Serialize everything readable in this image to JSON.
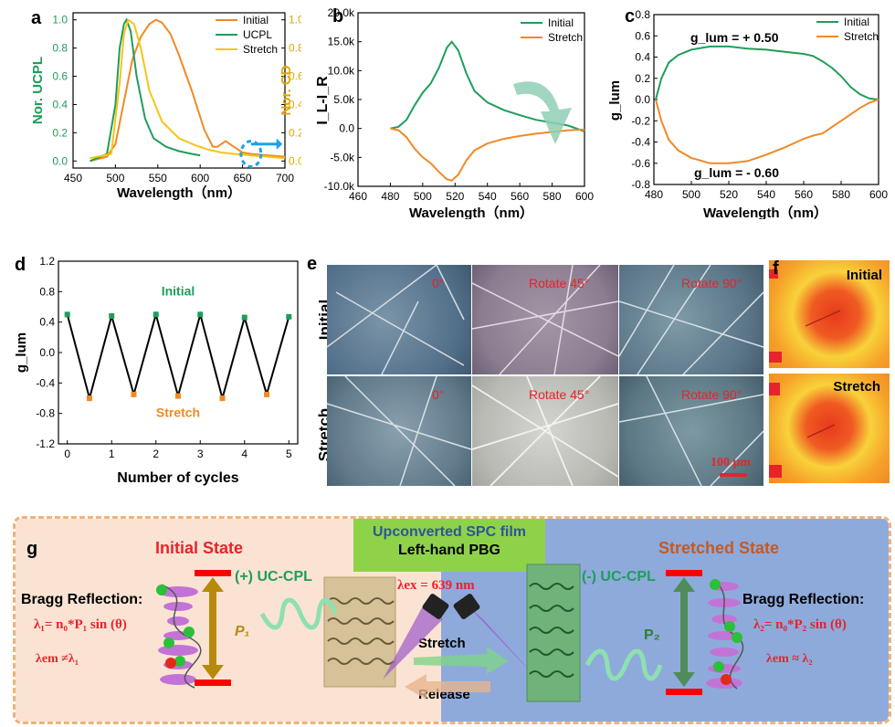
{
  "colors": {
    "initial": "#f08a24",
    "ucpl": "#1e9e5a",
    "stretch": "#f5c518",
    "green": "#1e9e5a",
    "orange": "#f08a24",
    "red": "#e8232a"
  },
  "chart_data": [
    {
      "panel": "a",
      "type": "line",
      "xlabel": "Wavelength（nm）",
      "ylabel_left": "Nor. UCPL",
      "ylabel_right": "Nor. CD",
      "xlim": [
        450,
        700
      ],
      "ylim": [
        -0.05,
        1.05
      ],
      "xticks": [
        "450",
        "500",
        "550",
        "600",
        "650",
        "700"
      ],
      "yticks_left": [
        "0.0",
        "0.2",
        "0.4",
        "0.6",
        "0.8",
        "1.0"
      ],
      "yticks_right": [
        "0.0",
        "0.2",
        "0.4",
        "0.6",
        "0.8",
        "1.0"
      ],
      "legend": "top-right",
      "series": [
        {
          "name": "Initial",
          "x": [
            470,
            490,
            500,
            510,
            520,
            530,
            540,
            548,
            555,
            565,
            575,
            590,
            605,
            615,
            620,
            625,
            630,
            640,
            650,
            660,
            680,
            700
          ],
          "y": [
            0.0,
            0.03,
            0.12,
            0.42,
            0.72,
            0.88,
            0.97,
            1.0,
            0.98,
            0.9,
            0.75,
            0.5,
            0.22,
            0.1,
            0.1,
            0.12,
            0.14,
            0.1,
            0.06,
            0.05,
            0.04,
            0.03
          ]
        },
        {
          "name": "UCPL",
          "x": [
            470,
            490,
            500,
            505,
            510,
            513,
            518,
            525,
            535,
            545,
            560,
            575,
            590,
            600
          ],
          "y": [
            0.0,
            0.05,
            0.4,
            0.8,
            0.97,
            1.0,
            0.92,
            0.6,
            0.3,
            0.16,
            0.1,
            0.07,
            0.05,
            0.04
          ]
        },
        {
          "name": "Stretch",
          "x": [
            470,
            495,
            505,
            510,
            515,
            522,
            530,
            540,
            555,
            575,
            595,
            610,
            625,
            640,
            660,
            680,
            700
          ],
          "y": [
            0.02,
            0.05,
            0.55,
            0.9,
            1.0,
            0.97,
            0.8,
            0.5,
            0.28,
            0.16,
            0.11,
            0.08,
            0.06,
            0.05,
            0.04,
            0.03,
            0.02
          ]
        }
      ]
    },
    {
      "panel": "b",
      "type": "line",
      "xlabel": "Wavelength（nm）",
      "ylabel": "I_L-I_R",
      "xlim": [
        460,
        600
      ],
      "ylim": [
        -10000,
        20000
      ],
      "xticks": [
        "460",
        "480",
        "500",
        "520",
        "540",
        "560",
        "580",
        "600"
      ],
      "yticks": [
        "-10.0k",
        "-5.0k",
        "0.0",
        "5.0k",
        "10.0k",
        "15.0k",
        "20.0k"
      ],
      "legend": "top-right",
      "series": [
        {
          "name": "Initial",
          "x": [
            480,
            485,
            490,
            495,
            500,
            505,
            510,
            515,
            518,
            522,
            527,
            532,
            540,
            550,
            560,
            570,
            580,
            590,
            600
          ],
          "y": [
            0,
            300,
            1500,
            4000,
            6200,
            7800,
            10500,
            14000,
            15000,
            13500,
            9500,
            6500,
            4500,
            3200,
            2300,
            1500,
            1000,
            500,
            -500
          ]
        },
        {
          "name": "Stretch",
          "x": [
            480,
            485,
            490,
            495,
            500,
            505,
            510,
            515,
            518,
            522,
            527,
            532,
            540,
            550,
            560,
            570,
            580,
            590,
            600
          ],
          "y": [
            0,
            -300,
            -1500,
            -3500,
            -5000,
            -6000,
            -7500,
            -8800,
            -9000,
            -8000,
            -5500,
            -3800,
            -2600,
            -1800,
            -1300,
            -900,
            -600,
            -300,
            -200
          ]
        }
      ]
    },
    {
      "panel": "c",
      "type": "line",
      "xlabel": "Wavelength（nm）",
      "ylabel": "g_lum",
      "xlim": [
        480,
        600
      ],
      "ylim": [
        -0.8,
        0.8
      ],
      "xticks": [
        "480",
        "500",
        "520",
        "540",
        "560",
        "580",
        "600"
      ],
      "yticks": [
        "-0.8",
        "-0.6",
        "-0.4",
        "-0.2",
        "0.0",
        "0.2",
        "0.4",
        "0.6",
        "0.8"
      ],
      "legend": "top-right",
      "annotations": [
        "g_lum = + 0.50",
        "g_lum = - 0.60"
      ],
      "series": [
        {
          "name": "Initial",
          "x": [
            481,
            484,
            488,
            493,
            500,
            510,
            520,
            530,
            540,
            550,
            560,
            565,
            570,
            575,
            580,
            585,
            590,
            595,
            600
          ],
          "y": [
            0.0,
            0.2,
            0.35,
            0.42,
            0.47,
            0.5,
            0.5,
            0.48,
            0.47,
            0.45,
            0.43,
            0.41,
            0.36,
            0.3,
            0.22,
            0.12,
            0.05,
            0.01,
            0.0
          ]
        },
        {
          "name": "Stretch",
          "x": [
            481,
            484,
            488,
            493,
            500,
            510,
            520,
            530,
            540,
            550,
            560,
            565,
            570,
            575,
            580,
            585,
            590,
            595,
            600
          ],
          "y": [
            0.0,
            -0.2,
            -0.38,
            -0.48,
            -0.55,
            -0.6,
            -0.6,
            -0.58,
            -0.52,
            -0.45,
            -0.37,
            -0.34,
            -0.32,
            -0.26,
            -0.2,
            -0.14,
            -0.08,
            -0.03,
            0.0
          ]
        }
      ]
    },
    {
      "panel": "d",
      "type": "line",
      "xlabel": "Number of cycles",
      "ylabel": "g_lum",
      "xlim": [
        -0.2,
        5.2
      ],
      "ylim": [
        -1.2,
        1.2
      ],
      "xticks": [
        "0",
        "1",
        "2",
        "3",
        "4",
        "5"
      ],
      "yticks": [
        "-1.2",
        "-0.8",
        "-0.4",
        "0.0",
        "0.4",
        "0.8",
        "1.2"
      ],
      "annotations": [
        "Initial",
        "Stretch"
      ],
      "series": [
        {
          "name": "cycle",
          "x": [
            0,
            0.5,
            1,
            1.5,
            2,
            2.5,
            3,
            3.5,
            4,
            4.5,
            5
          ],
          "y": [
            0.5,
            -0.6,
            0.48,
            -0.55,
            0.5,
            -0.57,
            0.5,
            -0.6,
            0.46,
            -0.55,
            0.47
          ]
        }
      ]
    }
  ],
  "panel_labels": {
    "a": "a",
    "b": "b",
    "c": "c",
    "d": "d",
    "e": "e",
    "f": "f",
    "g": "g"
  },
  "panel_e": {
    "row_labels": [
      "Initial",
      "Stretch"
    ],
    "col_labels": [
      "0°",
      "Rotate 45°",
      "Rotate 90°"
    ],
    "scale_bar": "100 μm"
  },
  "panel_f": {
    "labels": [
      "Initial",
      "Stretch"
    ]
  },
  "panel_g": {
    "initial_title": "Initial State",
    "stretched_title": "Stretched State",
    "film_title": "Upconverted SPC film",
    "film_subtitle": "Left-hand PBG",
    "bragg_left": "Bragg Reflection:",
    "bragg_right": "Bragg Reflection:",
    "eq_left": "λ₁= n₀*P₁ sin (θ)",
    "eq_right": "λ₂= n₀*P₂ sin (θ)",
    "rel_left": "λem ≠λ₁",
    "rel_right": "λem ≈ λ₂",
    "plus_cpl": "(+) UC-CPL",
    "minus_cpl": "(-) UC-CPL",
    "lambda_ex": "λex = 639 nm",
    "p1": "P₁",
    "p2": "P₂",
    "stretch": "Stretch",
    "release": "Release"
  }
}
